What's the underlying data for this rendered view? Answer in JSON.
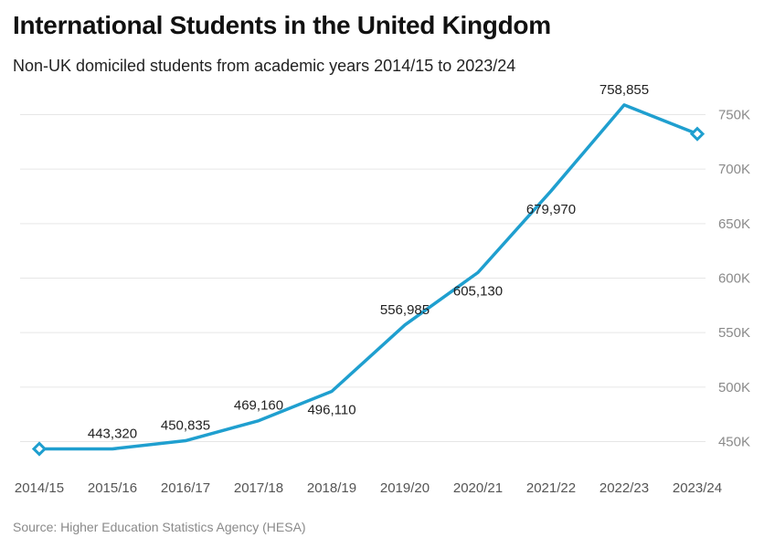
{
  "title": "International Students in the United Kingdom",
  "subtitle": "Non-UK domiciled students from academic years 2014/15 to 2023/24",
  "source": "Source: Higher Education Statistics Agency (HESA)",
  "colors": {
    "series": "#1f9fcf",
    "grid": "#e6e6e6",
    "marker_fill": "#ffffff"
  },
  "chart_data": {
    "type": "line",
    "title": "International Students in the United Kingdom",
    "subtitle": "Non-UK domiciled students from academic years 2014/15 to 2023/24",
    "xlabel": "",
    "ylabel": "",
    "categories": [
      "2014/15",
      "2015/16",
      "2016/17",
      "2017/18",
      "2018/19",
      "2019/20",
      "2020/21",
      "2021/22",
      "2022/23",
      "2023/24"
    ],
    "series": [
      {
        "values": [
          443320,
          443320,
          450835,
          469160,
          496110,
          556985,
          605130,
          679970,
          758855,
          732285
        ],
        "data_labels": [
          "",
          "443,320",
          "450,835",
          "469,160",
          "496,110",
          "556,985",
          "605,130",
          "679,970",
          "758,855",
          ""
        ],
        "label_side": [
          "",
          "above",
          "above",
          "above",
          "below",
          "above",
          "below",
          "below",
          "above",
          ""
        ],
        "markers": [
          0,
          9
        ]
      }
    ],
    "ylim": [
      432000,
      768000
    ],
    "yticks": [
      450000,
      500000,
      550000,
      600000,
      650000,
      700000,
      750000
    ],
    "ytick_labels": [
      "450K",
      "500K",
      "550K",
      "600K",
      "650K",
      "700K",
      "750K"
    ],
    "y_axis_side": "right",
    "grid": true,
    "legend": "none"
  }
}
